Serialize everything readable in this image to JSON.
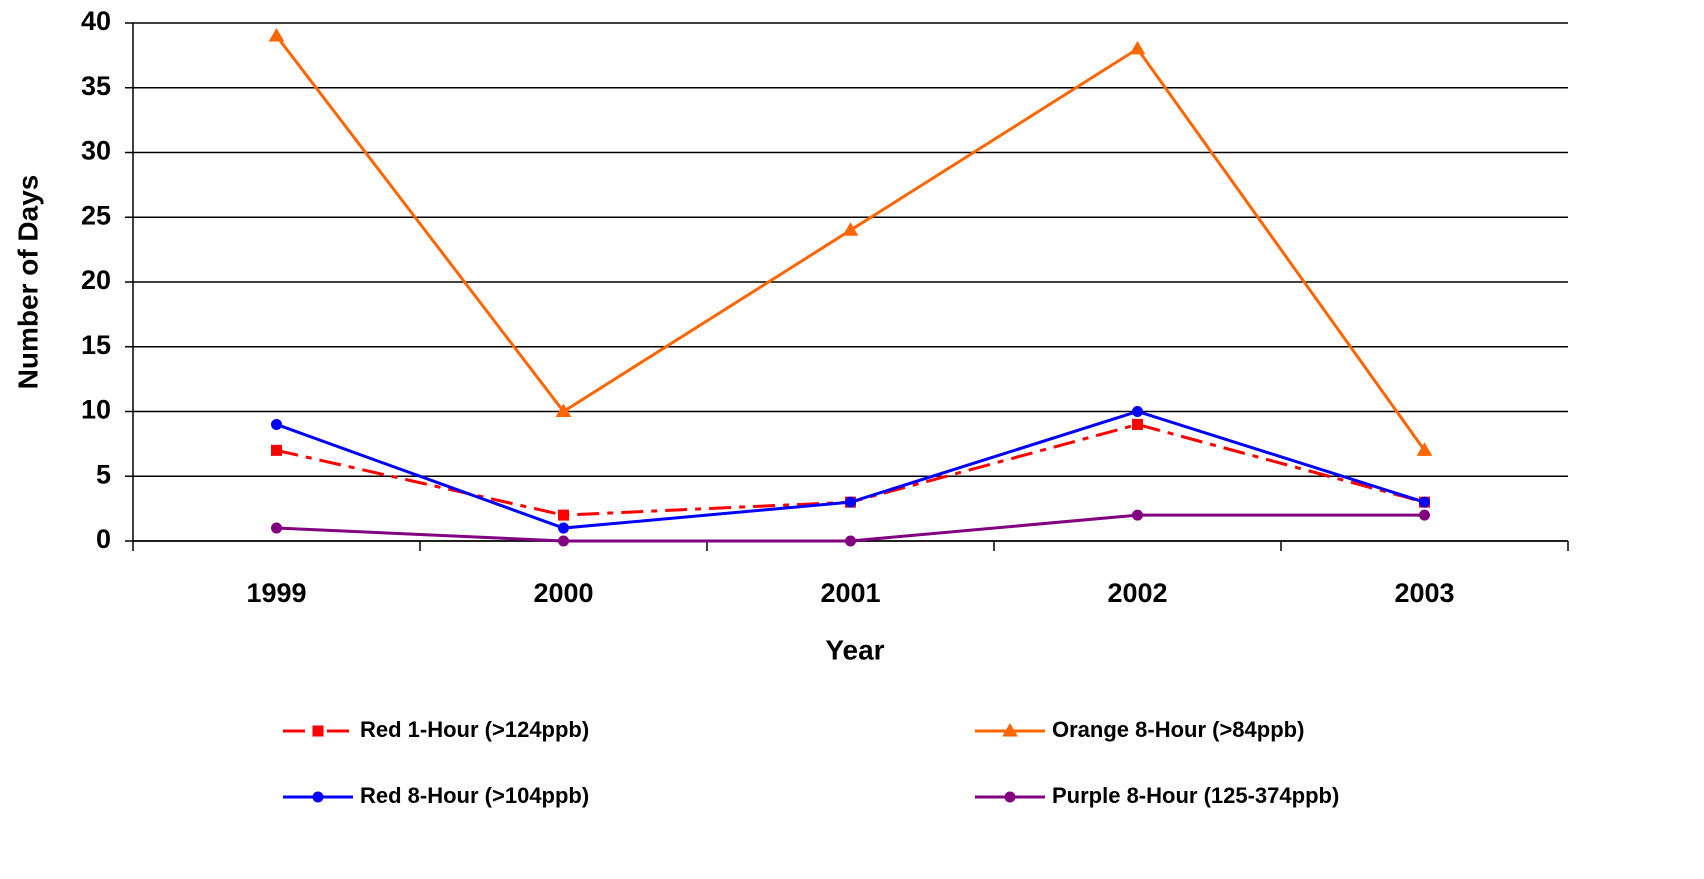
{
  "chart_data": {
    "type": "line",
    "x_label": "Year",
    "y_label": "Number of Days",
    "categories": [
      "1999",
      "2000",
      "2001",
      "2002",
      "2003"
    ],
    "series": [
      {
        "name": "Red 1-Hour (>124ppb)",
        "color": "#ff0000",
        "marker": "square",
        "line_style": "dash-dot",
        "values": [
          7,
          2,
          3,
          9,
          3
        ]
      },
      {
        "name": "Orange 8-Hour (>84ppb)",
        "color": "#ff6600",
        "marker": "triangle",
        "line_style": "solid",
        "values": [
          39,
          10,
          24,
          38,
          7
        ]
      },
      {
        "name": "Red 8-Hour (>104ppb)",
        "color": "#0000ff",
        "marker": "circle",
        "line_style": "solid",
        "values": [
          9,
          1,
          3,
          10,
          3
        ]
      },
      {
        "name": "Purple 8-Hour (125-374ppb)",
        "color": "#800080",
        "marker": "circle",
        "line_style": "solid",
        "values": [
          1,
          0,
          0,
          2,
          2
        ]
      }
    ],
    "ylim": [
      0,
      40
    ],
    "yticks": [
      0,
      5,
      10,
      15,
      20,
      25,
      30,
      35,
      40
    ],
    "grid": true,
    "legend": "bottom"
  }
}
